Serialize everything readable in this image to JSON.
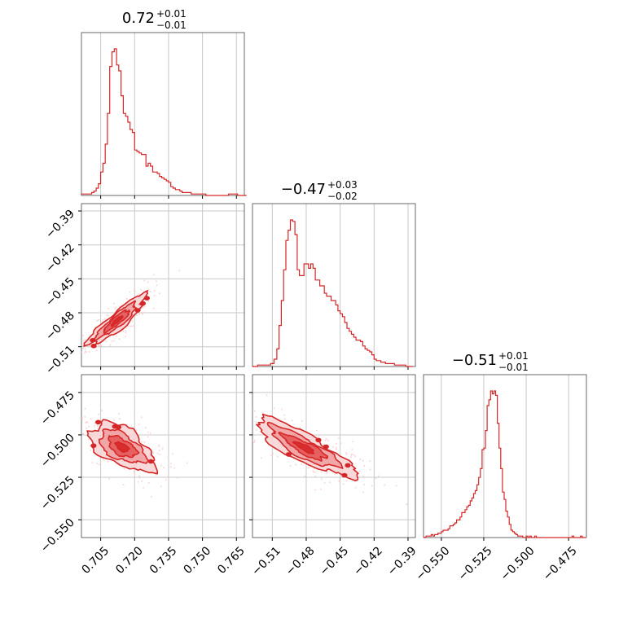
{
  "chart_data": {
    "type": "corner",
    "color": "#d62728",
    "contour_fill_light": "#f7d3d3",
    "contour_fill_mid": "#ef9a9a",
    "contour_fill_dark": "#e24a4a",
    "grid": true,
    "parameters": [
      {
        "title": "0.72",
        "title_plus": "+0.01",
        "title_minus": "−0.01",
        "range": [
          0.6965,
          0.7685
        ],
        "ticks": [
          0.705,
          0.72,
          0.735,
          0.75,
          0.765
        ],
        "tick_labels": [
          "0.705",
          "0.720",
          "0.735",
          "0.750",
          "0.765"
        ],
        "hist_x": [
          0.6975,
          0.6995,
          0.7005,
          0.7015,
          0.7025,
          0.7035,
          0.7045,
          0.7055,
          0.7065,
          0.7075,
          0.7085,
          0.7095,
          0.7105,
          0.7115,
          0.7125,
          0.7135,
          0.7145,
          0.7155,
          0.7165,
          0.7175,
          0.7185,
          0.7195,
          0.7205,
          0.7215,
          0.7225,
          0.7235,
          0.7245,
          0.7255,
          0.7265,
          0.7275,
          0.7285,
          0.7295,
          0.7305,
          0.7315,
          0.7325,
          0.7335,
          0.7345,
          0.7355,
          0.7365,
          0.7375,
          0.7385,
          0.7395,
          0.7405,
          0.7415,
          0.7425,
          0.7435,
          0.7445,
          0.7455,
          0.7465,
          0.7475,
          0.7485,
          0.7495,
          0.7505,
          0.7525,
          0.7555,
          0.7595,
          0.7635,
          0.7675
        ],
        "hist_y": [
          0.01,
          0.01,
          0.01,
          0.02,
          0.03,
          0.05,
          0.08,
          0.16,
          0.22,
          0.35,
          0.56,
          0.88,
          0.98,
          1.0,
          0.89,
          0.85,
          0.68,
          0.56,
          0.54,
          0.5,
          0.45,
          0.43,
          0.31,
          0.3,
          0.29,
          0.28,
          0.28,
          0.2,
          0.22,
          0.2,
          0.16,
          0.16,
          0.15,
          0.13,
          0.12,
          0.11,
          0.1,
          0.09,
          0.06,
          0.05,
          0.04,
          0.04,
          0.03,
          0.02,
          0.02,
          0.02,
          0.02,
          0.01,
          0.01,
          0.01,
          0.01,
          0.01,
          0.01,
          0.0,
          0.0,
          0.0,
          0.01,
          0.0
        ]
      },
      {
        "title": "−0.47",
        "title_plus": "+0.03",
        "title_minus": "−0.02",
        "range": [
          -0.5275,
          -0.3835
        ],
        "ticks": [
          -0.51,
          -0.48,
          -0.45,
          -0.42,
          -0.39
        ],
        "tick_labels": [
          "−0.51",
          "−0.48",
          "−0.45",
          "−0.42",
          "−0.39"
        ],
        "hist_x": [
          -0.525,
          -0.521,
          -0.517,
          -0.513,
          -0.51,
          -0.507,
          -0.505,
          -0.503,
          -0.501,
          -0.499,
          -0.497,
          -0.495,
          -0.493,
          -0.491,
          -0.489,
          -0.487,
          -0.485,
          -0.483,
          -0.481,
          -0.479,
          -0.477,
          -0.475,
          -0.473,
          -0.471,
          -0.469,
          -0.467,
          -0.465,
          -0.463,
          -0.461,
          -0.459,
          -0.457,
          -0.455,
          -0.453,
          -0.451,
          -0.449,
          -0.447,
          -0.445,
          -0.443,
          -0.441,
          -0.439,
          -0.437,
          -0.435,
          -0.433,
          -0.431,
          -0.429,
          -0.427,
          -0.425,
          -0.423,
          -0.421,
          -0.419,
          -0.417,
          -0.415,
          -0.413,
          -0.411,
          -0.409,
          -0.407,
          -0.405,
          -0.403,
          -0.401,
          -0.399,
          -0.397,
          -0.395,
          -0.393,
          -0.391,
          -0.389,
          -0.387
        ],
        "hist_y": [
          0.0,
          0.01,
          0.01,
          0.01,
          0.02,
          0.05,
          0.12,
          0.28,
          0.45,
          0.66,
          0.86,
          0.93,
          1.0,
          0.99,
          0.9,
          0.66,
          0.62,
          0.62,
          0.7,
          0.7,
          0.67,
          0.7,
          0.67,
          0.59,
          0.59,
          0.55,
          0.55,
          0.5,
          0.48,
          0.48,
          0.45,
          0.45,
          0.42,
          0.38,
          0.36,
          0.34,
          0.3,
          0.26,
          0.24,
          0.22,
          0.2,
          0.18,
          0.18,
          0.17,
          0.14,
          0.12,
          0.11,
          0.1,
          0.08,
          0.05,
          0.04,
          0.04,
          0.03,
          0.03,
          0.02,
          0.02,
          0.02,
          0.02,
          0.01,
          0.01,
          0.01,
          0.01,
          0.01,
          0.0,
          0.0,
          0.0
        ]
      },
      {
        "title": "−0.51",
        "title_plus": "+0.01",
        "title_minus": "−0.01",
        "range": [
          -0.5605,
          -0.4645
        ],
        "ticks": [
          -0.55,
          -0.525,
          -0.5,
          -0.475
        ],
        "tick_labels": [
          "−0.550",
          "−0.525",
          "−0.500",
          "−0.475"
        ],
        "hist_x": [
          -0.5595,
          -0.5585,
          -0.5575,
          -0.5565,
          -0.5555,
          -0.5545,
          -0.5535,
          -0.5525,
          -0.5515,
          -0.5505,
          -0.5495,
          -0.5485,
          -0.5475,
          -0.5465,
          -0.5455,
          -0.5445,
          -0.5435,
          -0.5425,
          -0.5415,
          -0.5405,
          -0.5395,
          -0.5385,
          -0.5375,
          -0.5365,
          -0.5355,
          -0.5345,
          -0.5335,
          -0.5325,
          -0.5315,
          -0.5305,
          -0.5295,
          -0.5285,
          -0.5275,
          -0.5265,
          -0.5255,
          -0.5245,
          -0.5235,
          -0.5225,
          -0.5215,
          -0.5205,
          -0.5195,
          -0.5185,
          -0.5175,
          -0.5165,
          -0.5155,
          -0.5145,
          -0.5135,
          -0.5125,
          -0.5115,
          -0.5105,
          -0.5095,
          -0.5085,
          -0.5075,
          -0.5065,
          -0.5055,
          -0.5045,
          -0.5035,
          -0.5025,
          -0.5015,
          -0.5005,
          -0.4995,
          -0.4985,
          -0.4975,
          -0.4965,
          -0.4955,
          -0.4945,
          -0.4935,
          -0.4925,
          -0.4915,
          -0.4905,
          -0.4895,
          -0.4885,
          -0.4875,
          -0.4865,
          -0.4855,
          -0.4845,
          -0.4835,
          -0.4825,
          -0.4815,
          -0.4805,
          -0.4795,
          -0.4785,
          -0.4775,
          -0.4765,
          -0.4755,
          -0.4745,
          -0.4735,
          -0.4725,
          -0.4715,
          -0.4705,
          -0.4695,
          -0.4685,
          -0.4675,
          -0.4665,
          -0.4655
        ],
        "hist_y": [
          0.0,
          0.01,
          0.01,
          0.01,
          0.02,
          0.01,
          0.02,
          0.02,
          0.03,
          0.03,
          0.04,
          0.05,
          0.05,
          0.05,
          0.06,
          0.08,
          0.08,
          0.09,
          0.1,
          0.12,
          0.12,
          0.14,
          0.17,
          0.17,
          0.19,
          0.21,
          0.22,
          0.25,
          0.27,
          0.3,
          0.32,
          0.36,
          0.41,
          0.47,
          0.6,
          0.61,
          0.73,
          0.9,
          0.94,
          1.0,
          0.98,
          1.0,
          0.97,
          0.78,
          0.61,
          0.47,
          0.31,
          0.26,
          0.18,
          0.14,
          0.09,
          0.05,
          0.04,
          0.03,
          0.02,
          0.01,
          0.01,
          0.01,
          0.0,
          0.0,
          0.01,
          0.0,
          0.01,
          0.0,
          0.0,
          0.01,
          0.0,
          0.0,
          0.0,
          0.0,
          0.0,
          0.0,
          0.0,
          0.0,
          0.0,
          0.0,
          0.0,
          0.0,
          0.0,
          0.0,
          0.0,
          0.0,
          0.0,
          0.0,
          0.0,
          0.0,
          0.0,
          0.01,
          0.0,
          0.0,
          0.0,
          0.0,
          0.01,
          0.0,
          0.0
        ]
      }
    ],
    "pairs": [
      {
        "x_param": 0,
        "y_param": 1,
        "center": [
          0.7122,
          -0.487
        ],
        "spread": [
          0.0055,
          0.0095
        ],
        "correlation": 0.9
      },
      {
        "x_param": 0,
        "y_param": 2,
        "center": [
          0.7145,
          -0.5072
        ],
        "spread": [
          0.0062,
          0.0062
        ],
        "correlation": -0.55
      },
      {
        "x_param": 1,
        "y_param": 2,
        "center": [
          -0.4815,
          -0.5075
        ],
        "spread": [
          0.019,
          0.0075
        ],
        "correlation": -0.85
      }
    ]
  }
}
